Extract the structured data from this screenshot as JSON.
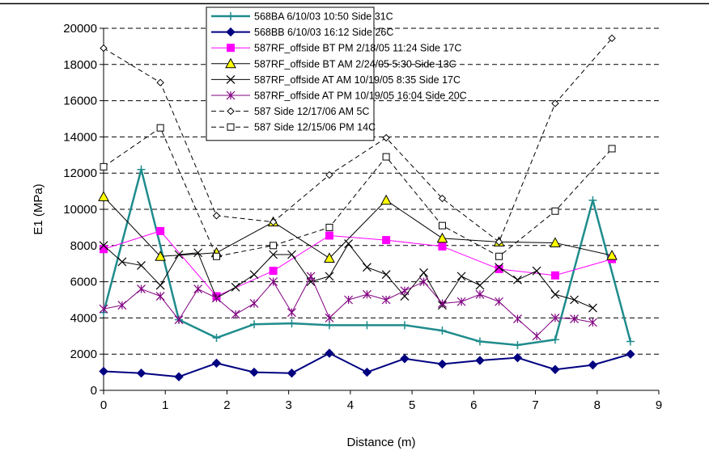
{
  "chart_data": {
    "type": "line",
    "title": "",
    "xlabel": "Distance (m)",
    "ylabel": "E1 (MPa)",
    "xlim": [
      0,
      9
    ],
    "ylim": [
      0,
      20000
    ],
    "x_ticks": [
      "0",
      "1",
      "2",
      "3",
      "4",
      "5",
      "6",
      "7",
      "8",
      "9"
    ],
    "y_ticks": [
      "0",
      "2000",
      "4000",
      "6000",
      "8000",
      "10000",
      "12000",
      "14000",
      "16000",
      "18000",
      "20000"
    ],
    "grid": "horizontal dashed",
    "legend_position": "top",
    "series": [
      {
        "name": "568BA 6/10/03 10:50 Side 31C",
        "color": "#1f8c8c",
        "marker": "plus",
        "dash": "solid",
        "width": 2.5,
        "x": [
          0,
          0.61,
          1.22,
          1.83,
          2.44,
          3.05,
          3.66,
          4.27,
          4.88,
          5.49,
          6.1,
          6.71,
          7.32,
          7.93,
          8.54
        ],
        "y": [
          4300,
          12200,
          3900,
          2900,
          3650,
          3700,
          3600,
          3600,
          3600,
          3300,
          2700,
          2500,
          2800,
          10500,
          2700
        ]
      },
      {
        "name": "568BB 6/10/03 16:12 Side 26C",
        "color": "#000080",
        "marker": "diamond-filled",
        "dash": "solid",
        "width": 2,
        "x": [
          0,
          0.61,
          1.22,
          1.83,
          2.44,
          3.05,
          3.66,
          4.27,
          4.88,
          5.49,
          6.1,
          6.71,
          7.32,
          7.93,
          8.54
        ],
        "y": [
          1050,
          950,
          750,
          1500,
          1000,
          950,
          2050,
          1000,
          1750,
          1450,
          1650,
          1800,
          1150,
          1400,
          2000
        ]
      },
      {
        "name": "587RF_offside  BT PM 2/18/05 11:24 Side 17C",
        "color": "#ff00ff",
        "marker": "square-filled",
        "dash": "solid",
        "width": 1,
        "x": [
          0,
          0.92,
          1.83,
          2.75,
          3.66,
          4.58,
          5.49,
          6.41,
          7.32,
          8.24
        ],
        "y": [
          7800,
          8800,
          5200,
          6600,
          8550,
          8300,
          7950,
          6700,
          6350,
          7250
        ]
      },
      {
        "name": "587RF_offside  BT AM 2/24/05 5:30 Side 13C",
        "color": "#000000",
        "marker": "triangle-yellow",
        "dash": "solid",
        "width": 1,
        "x": [
          0,
          0.92,
          1.83,
          2.75,
          3.66,
          4.58,
          5.49,
          6.41,
          7.32,
          8.24
        ],
        "y": [
          10700,
          7400,
          7600,
          9300,
          7300,
          10500,
          8400,
          8200,
          8150,
          7450
        ]
      },
      {
        "name": "587RF_offside  AT AM 10/19/05 8:35 Side 17C",
        "color": "#000000",
        "marker": "x",
        "dash": "solid",
        "width": 1,
        "x": [
          0,
          0.3,
          0.61,
          0.92,
          1.22,
          1.53,
          1.83,
          2.14,
          2.44,
          2.75,
          3.05,
          3.36,
          3.66,
          3.97,
          4.27,
          4.58,
          4.88,
          5.19,
          5.49,
          5.8,
          6.1,
          6.41,
          6.71,
          7.02,
          7.32,
          7.63,
          7.93
        ],
        "y": [
          8000,
          7100,
          6900,
          5800,
          7500,
          7600,
          5100,
          5700,
          6400,
          7500,
          7500,
          6000,
          6300,
          8100,
          6800,
          6400,
          5200,
          6500,
          4700,
          6300,
          5800,
          6800,
          6100,
          6600,
          5300,
          5000,
          4550
        ]
      },
      {
        "name": "587RF_offside  AT PM 10/19/05 16:04 Side 20C",
        "color": "#800080",
        "marker": "star",
        "dash": "solid",
        "width": 1,
        "x": [
          0,
          0.3,
          0.61,
          0.92,
          1.22,
          1.53,
          1.83,
          2.14,
          2.44,
          2.75,
          3.05,
          3.36,
          3.66,
          3.97,
          4.27,
          4.58,
          4.88,
          5.19,
          5.49,
          5.8,
          6.1,
          6.41,
          6.71,
          7.02,
          7.32,
          7.63,
          7.93
        ],
        "y": [
          4500,
          4700,
          5600,
          5200,
          3900,
          5600,
          5100,
          4200,
          4800,
          6000,
          4300,
          6300,
          4000,
          5000,
          5300,
          5000,
          5500,
          6000,
          4800,
          4900,
          5300,
          4900,
          3950,
          3000,
          4000,
          3950,
          3750
        ]
      },
      {
        "name": "587 Side 12/17/06 AM 5C",
        "color": "#000000",
        "marker": "diamond-open",
        "dash": "dashed",
        "width": 1,
        "x": [
          0,
          0.92,
          1.83,
          2.75,
          3.66,
          4.58,
          5.49,
          6.41,
          7.32,
          8.24
        ],
        "y": [
          18900,
          17000,
          9650,
          9300,
          11900,
          13950,
          10600,
          8200,
          15850,
          19450
        ]
      },
      {
        "name": "587 Side 12/15/06 PM 14C",
        "color": "#000000",
        "marker": "square-open",
        "dash": "dashed",
        "width": 1,
        "x": [
          0,
          0.92,
          1.83,
          2.75,
          3.66,
          4.58,
          5.49,
          6.41,
          7.32,
          8.24
        ],
        "y": [
          12350,
          14500,
          7400,
          8000,
          9000,
          12900,
          9100,
          7400,
          9900,
          13350
        ]
      }
    ]
  }
}
